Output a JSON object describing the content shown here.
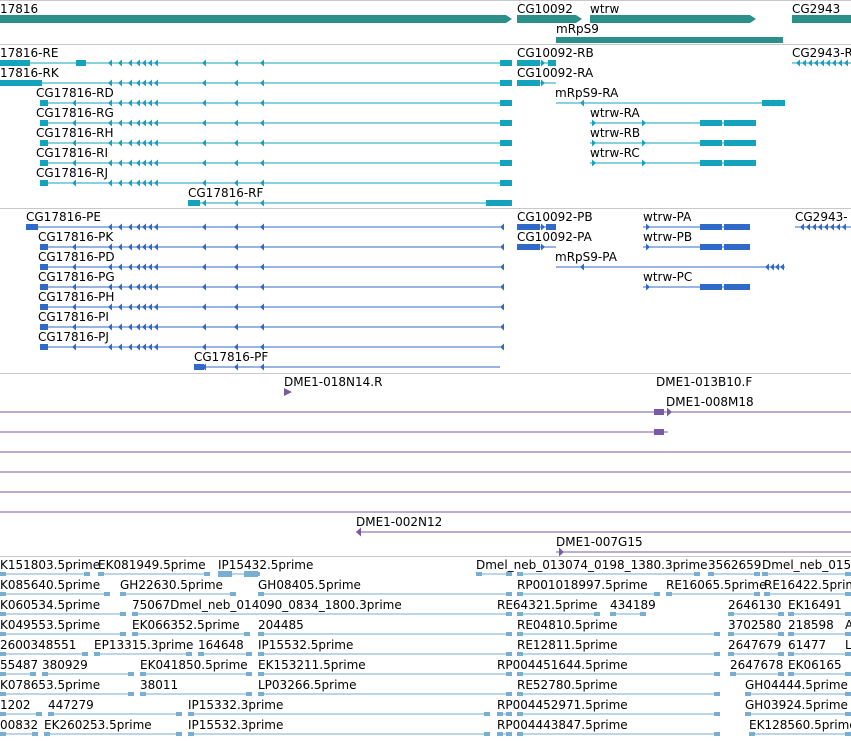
{
  "colors": {
    "gene": "#2a9089",
    "transcript": "#14a3bc",
    "protein": "#2f6ac9",
    "clone": "#7a5aa8",
    "est": "#79aed3"
  },
  "tracks": {
    "genes": {
      "items": [
        {
          "label": "17816"
        },
        {
          "label": "CG10092"
        },
        {
          "label": "wtrw"
        },
        {
          "label": "mRpS9"
        },
        {
          "label": "CG2943"
        }
      ]
    },
    "transcripts": {
      "items": [
        {
          "label": "17816-RE"
        },
        {
          "label": "17816-RK"
        },
        {
          "label": "CG17816-RD"
        },
        {
          "label": "CG17816-RG"
        },
        {
          "label": "CG17816-RH"
        },
        {
          "label": "CG17816-RI"
        },
        {
          "label": "CG17816-RJ"
        },
        {
          "label": "CG17816-RF"
        },
        {
          "label": "CG10092-RB"
        },
        {
          "label": "CG10092-RA"
        },
        {
          "label": "mRpS9-RA"
        },
        {
          "label": "wtrw-RA"
        },
        {
          "label": "wtrw-RB"
        },
        {
          "label": "wtrw-RC"
        },
        {
          "label": "CG2943-R"
        }
      ]
    },
    "proteins": {
      "items": [
        {
          "label": "CG17816-PE"
        },
        {
          "label": "CG17816-PK"
        },
        {
          "label": "CG17816-PD"
        },
        {
          "label": "CG17816-PG"
        },
        {
          "label": "CG17816-PH"
        },
        {
          "label": "CG17816-PI"
        },
        {
          "label": "CG17816-PJ"
        },
        {
          "label": "CG17816-PF"
        },
        {
          "label": "CG10092-PB"
        },
        {
          "label": "CG10092-PA"
        },
        {
          "label": "mRpS9-PA"
        },
        {
          "label": "wtrw-PA"
        },
        {
          "label": "wtrw-PB"
        },
        {
          "label": "wtrw-PC"
        },
        {
          "label": "CG2943-"
        }
      ]
    },
    "clones": {
      "items": [
        {
          "label": "DME1-018N14.R"
        },
        {
          "label": "DME1-013B10.F"
        },
        {
          "label": "DME1-008M18"
        },
        {
          "label": "DME1-002N12"
        },
        {
          "label": "DME1-007G15"
        }
      ]
    },
    "ests": {
      "items": [
        {
          "label": "K151803.5prime"
        },
        {
          "label": "EK081949.5prime"
        },
        {
          "label": "IP15432.5prime"
        },
        {
          "label": "Dmel_neb_013074_0198_1380.3prime"
        },
        {
          "label": "3562659"
        },
        {
          "label": "Dmel_neb_015"
        },
        {
          "label": "K085640.5prime"
        },
        {
          "label": "GH22630.5prime"
        },
        {
          "label": "GH08405.5prime"
        },
        {
          "label": "RP001018997.5prime"
        },
        {
          "label": "RE16065.5prime"
        },
        {
          "label": "RE16422.5prime"
        },
        {
          "label": "K060534.5prime"
        },
        {
          "label": "75067Dmel_neb_014090_0834_1800.3prime"
        },
        {
          "label": "RE64321.5prime"
        },
        {
          "label": "434189"
        },
        {
          "label": "2646130"
        },
        {
          "label": "EK16491"
        },
        {
          "label": "K049553.5prime"
        },
        {
          "label": "EK066352.5prime"
        },
        {
          "label": "204485"
        },
        {
          "label": "RE04810.5prime"
        },
        {
          "label": "3702580"
        },
        {
          "label": "218598"
        },
        {
          "label": "A"
        },
        {
          "label": "2600348551"
        },
        {
          "label": "EP13315.3prime"
        },
        {
          "label": "164648"
        },
        {
          "label": "IP15532.5prime"
        },
        {
          "label": "RE12811.5prime"
        },
        {
          "label": "2647679"
        },
        {
          "label": "61477"
        },
        {
          "label": "L"
        },
        {
          "label": "55487"
        },
        {
          "label": "380929"
        },
        {
          "label": "EK041850.5prime"
        },
        {
          "label": "EK153211.5prime"
        },
        {
          "label": "RP004451644.5prime"
        },
        {
          "label": "2647678"
        },
        {
          "label": "EK06165"
        },
        {
          "label": "K078653.5prime"
        },
        {
          "label": "38011"
        },
        {
          "label": "LP03266.5prime"
        },
        {
          "label": "RE52780.5prime"
        },
        {
          "label": "GH04444.5prime"
        },
        {
          "label": "1202"
        },
        {
          "label": "447279"
        },
        {
          "label": "IP15332.3prime"
        },
        {
          "label": "RP004452971.5prime"
        },
        {
          "label": "GH03924.5prime"
        },
        {
          "label": "00832"
        },
        {
          "label": "EK260253.5prime"
        },
        {
          "label": "IP15532.3prime"
        },
        {
          "label": "RP004443847.5prime"
        },
        {
          "label": "EK128560.5prime"
        }
      ]
    }
  }
}
